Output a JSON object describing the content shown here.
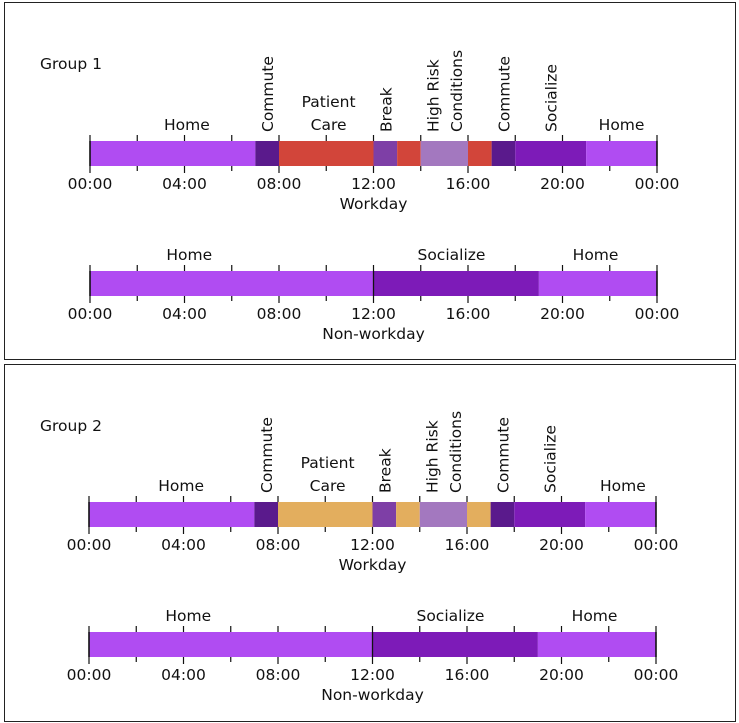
{
  "colors": {
    "home": "#b04cf2",
    "commute": "#5a1a8c",
    "break": "#7e3fa6",
    "socialize": "#7d1bb8",
    "high_risk": "#a378bf",
    "patient_care_g1": "#d2453a",
    "patient_care_g2": "#e3ae5e"
  },
  "time_ticks": [
    "00:00",
    "04:00",
    "08:00",
    "12:00",
    "16:00",
    "20:00",
    "00:00"
  ],
  "groups": [
    {
      "title": "Group 1",
      "workday": {
        "label": "Workday",
        "segments": [
          {
            "start": 0,
            "end": 7,
            "activity": "home"
          },
          {
            "start": 7,
            "end": 8,
            "activity": "commute"
          },
          {
            "start": 8,
            "end": 12,
            "activity": "patient_care"
          },
          {
            "start": 12,
            "end": 13,
            "activity": "break"
          },
          {
            "start": 13,
            "end": 14,
            "activity": "patient_care"
          },
          {
            "start": 14,
            "end": 16,
            "activity": "high_risk"
          },
          {
            "start": 16,
            "end": 17,
            "activity": "patient_care"
          },
          {
            "start": 17,
            "end": 18,
            "activity": "commute"
          },
          {
            "start": 18,
            "end": 21,
            "activity": "socialize"
          },
          {
            "start": 21,
            "end": 24,
            "activity": "home"
          }
        ],
        "labels": [
          {
            "text": "Home",
            "at": 4.1,
            "vertical": false
          },
          {
            "text": "Commute",
            "at": 7.5,
            "vertical": true
          },
          {
            "text": "Patient",
            "at": 10.1,
            "vertical": false,
            "line": 1
          },
          {
            "text": "Care",
            "at": 10.1,
            "vertical": false
          },
          {
            "text": "Break",
            "at": 12.5,
            "vertical": true
          },
          {
            "text": "High Risk",
            "at": 14.5,
            "vertical": true
          },
          {
            "text": "Conditions",
            "at": 15.5,
            "vertical": true
          },
          {
            "text": "Commute",
            "at": 17.5,
            "vertical": true
          },
          {
            "text": "Socialize",
            "at": 19.5,
            "vertical": true
          },
          {
            "text": "Home",
            "at": 22.5,
            "vertical": false
          }
        ]
      },
      "nonworkday": {
        "label": "Non-workday",
        "segments": [
          {
            "start": 0,
            "end": 12,
            "activity": "home"
          },
          {
            "start": 12,
            "end": 19,
            "activity": "socialize"
          },
          {
            "start": 19,
            "end": 24,
            "activity": "home"
          }
        ],
        "labels": [
          {
            "text": "Home",
            "at": 4.2
          },
          {
            "text": "Socialize",
            "at": 15.3
          },
          {
            "text": "Home",
            "at": 21.4
          }
        ]
      }
    },
    {
      "title": "Group 2",
      "workday": {
        "label": "Workday",
        "segments": [
          {
            "start": 0,
            "end": 7,
            "activity": "home"
          },
          {
            "start": 7,
            "end": 8,
            "activity": "commute"
          },
          {
            "start": 8,
            "end": 12,
            "activity": "patient_care"
          },
          {
            "start": 12,
            "end": 13,
            "activity": "break"
          },
          {
            "start": 13,
            "end": 14,
            "activity": "patient_care"
          },
          {
            "start": 14,
            "end": 16,
            "activity": "high_risk"
          },
          {
            "start": 16,
            "end": 17,
            "activity": "patient_care"
          },
          {
            "start": 17,
            "end": 18,
            "activity": "commute"
          },
          {
            "start": 18,
            "end": 21,
            "activity": "socialize"
          },
          {
            "start": 21,
            "end": 24,
            "activity": "home"
          }
        ],
        "labels": [
          {
            "text": "Home",
            "at": 3.9,
            "vertical": false
          },
          {
            "text": "Commute",
            "at": 7.5,
            "vertical": true
          },
          {
            "text": "Patient",
            "at": 10.1,
            "vertical": false,
            "line": 1
          },
          {
            "text": "Care",
            "at": 10.1,
            "vertical": false
          },
          {
            "text": "Break",
            "at": 12.5,
            "vertical": true
          },
          {
            "text": "High Risk",
            "at": 14.5,
            "vertical": true
          },
          {
            "text": "Conditions",
            "at": 15.5,
            "vertical": true
          },
          {
            "text": "Commute",
            "at": 17.5,
            "vertical": true
          },
          {
            "text": "Socialize",
            "at": 19.5,
            "vertical": true
          },
          {
            "text": "Home",
            "at": 22.6,
            "vertical": false
          }
        ]
      },
      "nonworkday": {
        "label": "Non-workday",
        "segments": [
          {
            "start": 0,
            "end": 12,
            "activity": "home"
          },
          {
            "start": 12,
            "end": 19,
            "activity": "socialize"
          },
          {
            "start": 19,
            "end": 24,
            "activity": "home"
          }
        ],
        "labels": [
          {
            "text": "Home",
            "at": 4.2
          },
          {
            "text": "Socialize",
            "at": 15.3
          },
          {
            "text": "Home",
            "at": 21.4
          }
        ]
      }
    }
  ]
}
